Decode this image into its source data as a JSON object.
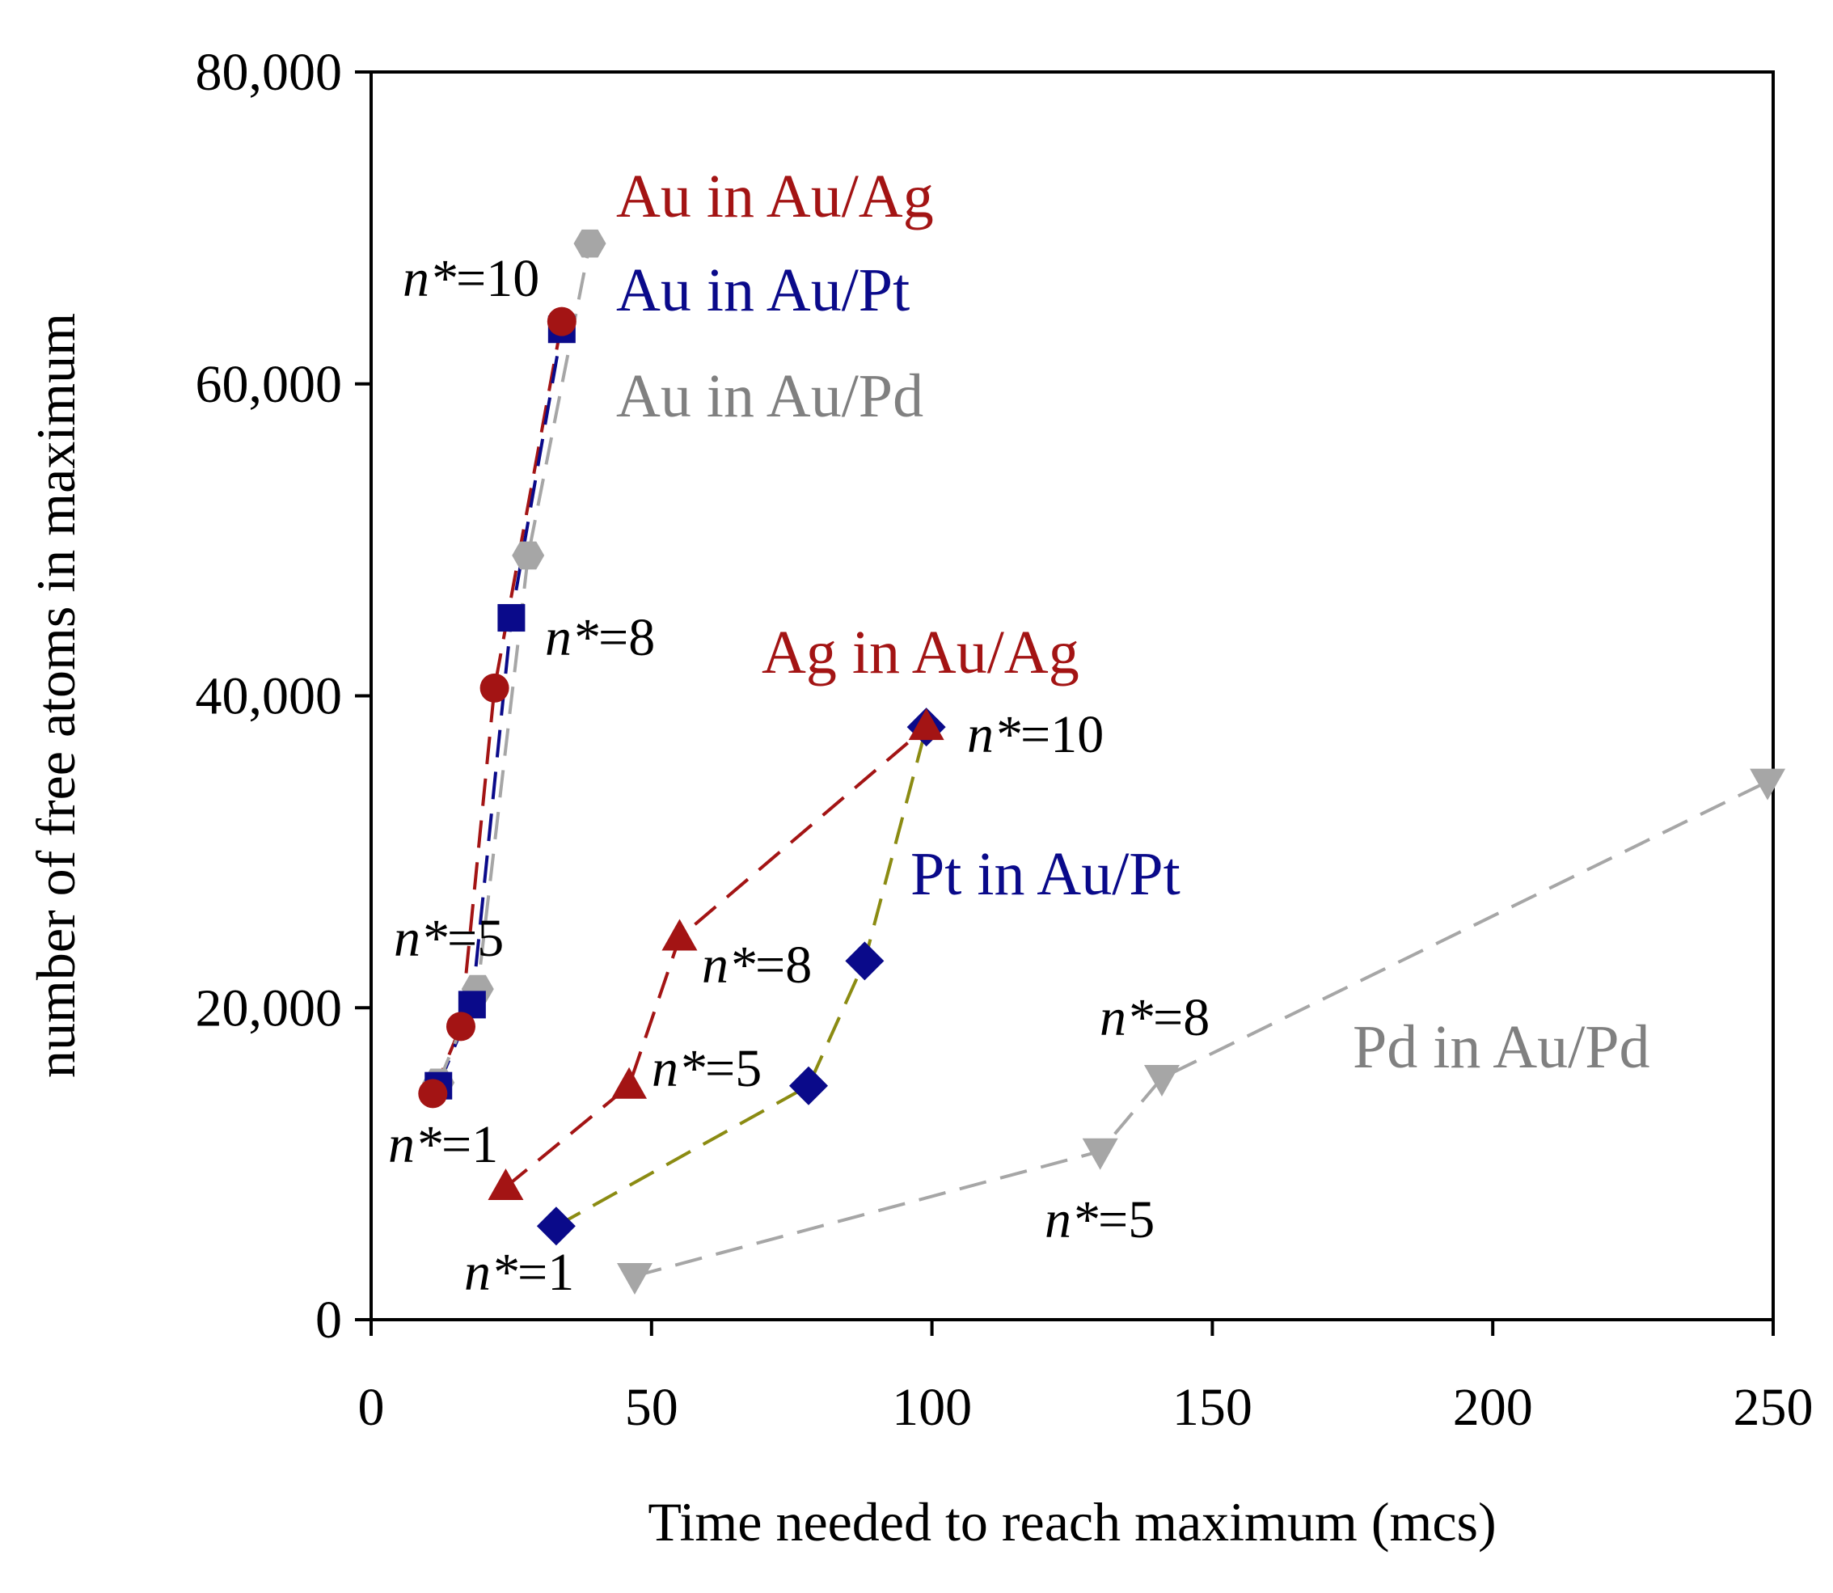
{
  "chart_data": {
    "type": "scatter",
    "xlabel": "Time needed to reach maximum (mcs)",
    "ylabel": "number of free atoms in maximum",
    "xlim": [
      0,
      250
    ],
    "ylim": [
      0,
      80000
    ],
    "x_ticks": [
      "0",
      "50",
      "100",
      "150",
      "200",
      "250"
    ],
    "y_ticks": [
      "0",
      "20,000",
      "40,000",
      "60,000",
      "80,000"
    ],
    "series": [
      {
        "name": "Au in Au/Ag",
        "color": "#a31414",
        "marker": "circle",
        "x": [
          11,
          16,
          22,
          34
        ],
        "y": [
          14500,
          18800,
          40500,
          64000
        ]
      },
      {
        "name": "Au in Au/Pt",
        "color": "#0a0a8a",
        "marker": "square",
        "x": [
          12,
          18,
          25,
          34
        ],
        "y": [
          15000,
          20200,
          45000,
          63500
        ]
      },
      {
        "name": "Au in Au/Pd",
        "color": "#a6a6a6",
        "marker": "hexagon",
        "x": [
          12,
          19,
          28,
          39
        ],
        "y": [
          15200,
          21200,
          49000,
          69000
        ]
      },
      {
        "name": "Ag in Au/Ag",
        "color": "#a31414",
        "marker": "triangle-up",
        "x": [
          24,
          46,
          55,
          99
        ],
        "y": [
          8500,
          15000,
          24500,
          38000
        ]
      },
      {
        "name": "Pt in Au/Pt",
        "color": "#0a0a8a",
        "marker": "diamond",
        "x": [
          33,
          78,
          88,
          99
        ],
        "y": [
          6000,
          15000,
          23000,
          38000
        ]
      },
      {
        "name": "Pd in Au/Pd",
        "color": "#a6a6a6",
        "marker": "triangle-down",
        "x": [
          47,
          130,
          141,
          249
        ],
        "y": [
          2800,
          10800,
          15500,
          34500
        ]
      }
    ],
    "line_colors": {
      "Au in Au/Ag": "#a31414",
      "Au in Au/Pt": "#0a0a8a",
      "Au in Au/Pd": "#a6a6a6",
      "Ag in Au/Ag": "#a31414",
      "Pt in Au/Pt": "#8b8b12",
      "Pd in Au/Pd": "#a6a6a6"
    },
    "series_labels": [
      {
        "text": "Au in Au/Ag",
        "color": "#a31414"
      },
      {
        "text": "Au in Au/Pt",
        "color": "#0a0a8a"
      },
      {
        "text": "Au in Au/Pd",
        "color": "#808080"
      },
      {
        "text": "Ag in Au/Ag",
        "color": "#a31414"
      },
      {
        "text": "Pt in Au/Pt",
        "color": "#0a0a8a"
      },
      {
        "text": "Pd in Au/Pd",
        "color": "#808080"
      }
    ],
    "annotations": [
      {
        "n": "n*",
        "value": "=10"
      },
      {
        "n": "n*",
        "value": "=8"
      },
      {
        "n": "n*",
        "value": "=5"
      },
      {
        "n": "n*",
        "value": "=1"
      },
      {
        "n": "n*",
        "value": "=10"
      },
      {
        "n": "n*",
        "value": "=8"
      },
      {
        "n": "n*",
        "value": "=5"
      },
      {
        "n": "n*",
        "value": "=1"
      },
      {
        "n": "n*",
        "value": "=8"
      },
      {
        "n": "n*",
        "value": "=5"
      }
    ]
  }
}
